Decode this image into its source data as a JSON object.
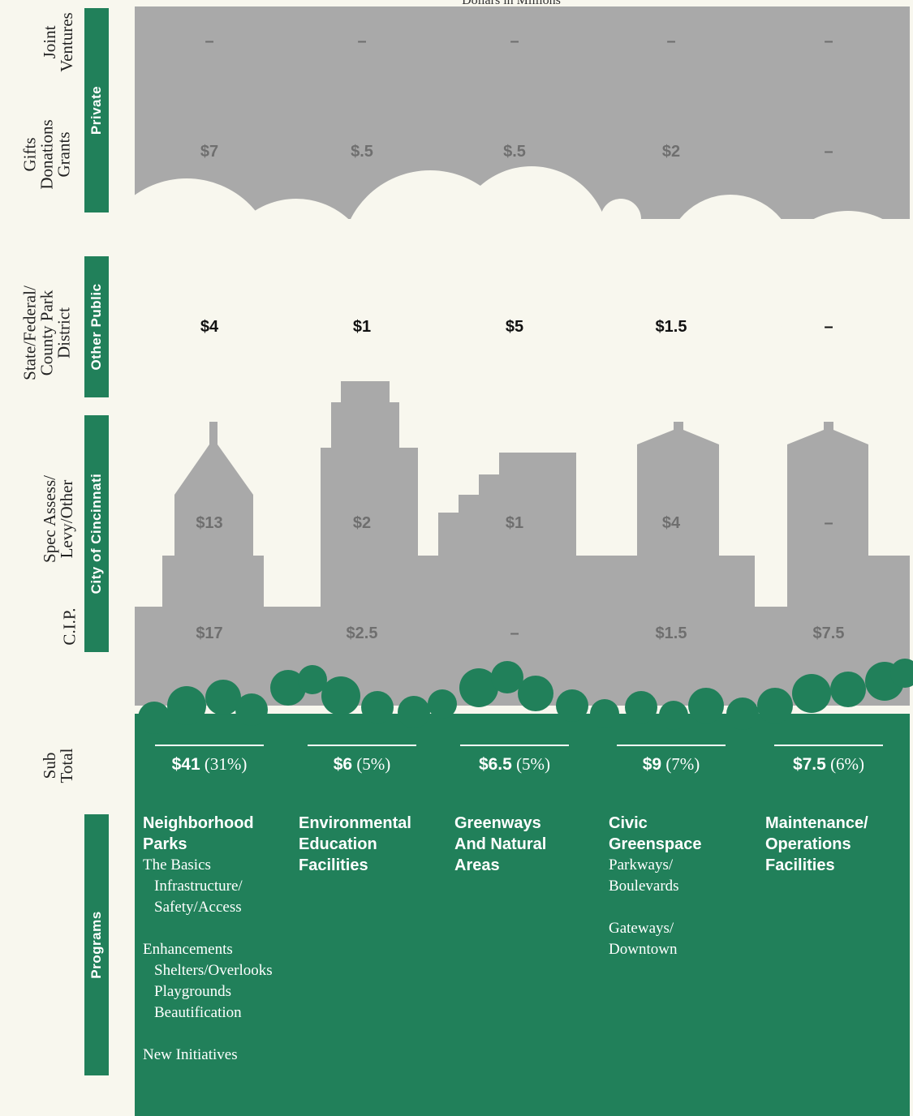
{
  "header": {
    "caption": "Dollars in Millions"
  },
  "row_labels": {
    "joint_ventures": [
      "Joint",
      "Ventures"
    ],
    "gifts": [
      "Gifts",
      "Donations",
      "Grants"
    ],
    "state": [
      "State/Federal/",
      "County Park",
      "District"
    ],
    "spec": [
      "Spec Assess/",
      "Levy/Other"
    ],
    "cip": [
      "C.I.P."
    ],
    "subtotal": [
      "Sub",
      "Total"
    ]
  },
  "band_labels": {
    "private": "Private",
    "other_public": "Other Public",
    "city": "City of Cincinnati",
    "programs": "Programs"
  },
  "chart_data": {
    "type": "table",
    "title": "",
    "unit_caption": "Dollars in Millions",
    "categories": [
      "Neighborhood Parks",
      "Environmental Education Facilities",
      "Greenways And Natural Areas",
      "Civic Greenspace",
      "Maintenance/ Operations Facilities"
    ],
    "series": [
      {
        "name": "Joint Ventures",
        "values": [
          "–",
          "–",
          "–",
          "–",
          "–"
        ]
      },
      {
        "name": "Gifts Donations Grants",
        "values": [
          "$7",
          "$.5",
          "$.5",
          "$2",
          "–"
        ]
      },
      {
        "name": "State/Federal/ County Park District",
        "values": [
          "$4",
          "$1",
          "$5",
          "$1.5",
          "–"
        ]
      },
      {
        "name": "Spec Assess/ Levy/Other",
        "values": [
          "$13",
          "$2",
          "$1",
          "$4",
          "–"
        ]
      },
      {
        "name": "C.I.P.",
        "values": [
          "$17",
          "$2.5",
          "–",
          "$1.5",
          "$7.5"
        ]
      }
    ],
    "subtotals": [
      {
        "amount": "$41",
        "pct": "(31%)"
      },
      {
        "amount": "$6",
        "pct": "(5%)"
      },
      {
        "amount": "$6.5",
        "pct": "(5%)"
      },
      {
        "amount": "$9",
        "pct": "(7%)"
      },
      {
        "amount": "$7.5",
        "pct": "(6%)"
      }
    ]
  },
  "programs": [
    {
      "name": [
        "Neighborhood",
        "Parks"
      ],
      "lines": [
        {
          "t": "The Basics",
          "i": false,
          "g": false
        },
        {
          "t": "Infrastructure/",
          "i": true,
          "g": false
        },
        {
          "t": "Safety/Access",
          "i": true,
          "g": false
        },
        {
          "t": "Enhancements",
          "i": false,
          "g": true
        },
        {
          "t": "Shelters/Overlooks",
          "i": true,
          "g": false
        },
        {
          "t": "Playgrounds",
          "i": true,
          "g": false
        },
        {
          "t": "Beautification",
          "i": true,
          "g": false
        },
        {
          "t": "New Initiatives",
          "i": false,
          "g": true
        }
      ]
    },
    {
      "name": [
        "Environmental",
        "Education",
        "Facilities"
      ],
      "lines": []
    },
    {
      "name": [
        "Greenways",
        "And Natural",
        "Areas"
      ],
      "lines": []
    },
    {
      "name": [
        "Civic",
        "Greenspace"
      ],
      "lines": [
        {
          "t": "Parkways/",
          "i": false,
          "g": false
        },
        {
          "t": "Boulevards",
          "i": false,
          "g": false
        },
        {
          "t": "Gateways/",
          "i": false,
          "g": true
        },
        {
          "t": "Downtown",
          "i": false,
          "g": false
        }
      ]
    },
    {
      "name": [
        "Maintenance/",
        "Operations",
        "Facilities"
      ],
      "lines": []
    }
  ],
  "colors": {
    "gray": "#a9a9a9",
    "green": "#21805a",
    "paper": "#f8f7ee"
  }
}
